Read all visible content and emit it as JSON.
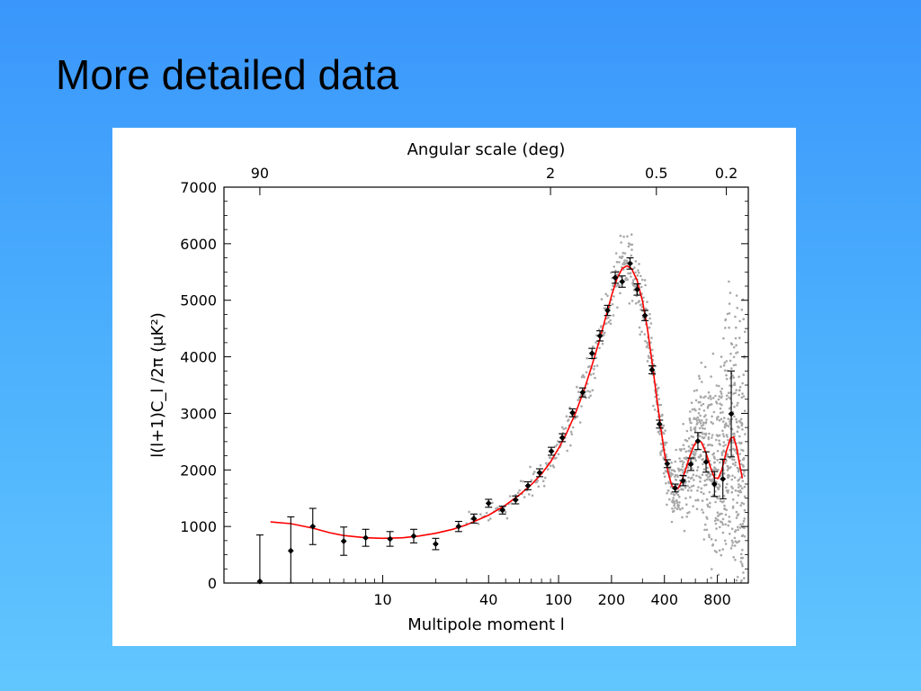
{
  "slide": {
    "title": "More detailed data"
  },
  "chart_data": {
    "type": "scatter",
    "title": "",
    "top_axis_label": "Angular scale (deg)",
    "top_ticks": [
      {
        "label": "90",
        "l": 2
      },
      {
        "label": "2",
        "l": 90
      },
      {
        "label": "0.5",
        "l": 360
      },
      {
        "label": "0.2",
        "l": 900
      }
    ],
    "xlabel": "Multipole moment l",
    "x_scale": "log",
    "xlim": [
      1.25,
      1200
    ],
    "xticks": [
      10,
      40,
      100,
      200,
      400,
      800
    ],
    "ylabel": "l(l+1)C_l /2π (μK²)",
    "ylim": [
      0,
      7000
    ],
    "yticks": [
      0,
      1000,
      2000,
      3000,
      4000,
      5000,
      6000,
      7000
    ],
    "grid": false,
    "colors": {
      "model": "#ff0000",
      "points": "#000000",
      "scatter": "#a8a8a8"
    },
    "binned_points": [
      {
        "l": 2,
        "y": 30,
        "err": 820
      },
      {
        "l": 3,
        "y": 570,
        "err": 600
      },
      {
        "l": 4,
        "y": 1000,
        "err": 320
      },
      {
        "l": 6,
        "y": 740,
        "err": 250
      },
      {
        "l": 8,
        "y": 800,
        "err": 150
      },
      {
        "l": 11,
        "y": 780,
        "err": 130
      },
      {
        "l": 15,
        "y": 830,
        "err": 120
      },
      {
        "l": 20,
        "y": 690,
        "err": 100
      },
      {
        "l": 27,
        "y": 1000,
        "err": 90
      },
      {
        "l": 33,
        "y": 1140,
        "err": 80
      },
      {
        "l": 40,
        "y": 1410,
        "err": 70
      },
      {
        "l": 48,
        "y": 1290,
        "err": 70
      },
      {
        "l": 57,
        "y": 1470,
        "err": 70
      },
      {
        "l": 67,
        "y": 1720,
        "err": 70
      },
      {
        "l": 78,
        "y": 1950,
        "err": 70
      },
      {
        "l": 91,
        "y": 2330,
        "err": 70
      },
      {
        "l": 105,
        "y": 2570,
        "err": 70
      },
      {
        "l": 120,
        "y": 3010,
        "err": 70
      },
      {
        "l": 137,
        "y": 3370,
        "err": 80
      },
      {
        "l": 155,
        "y": 4060,
        "err": 90
      },
      {
        "l": 172,
        "y": 4370,
        "err": 90
      },
      {
        "l": 190,
        "y": 4820,
        "err": 90
      },
      {
        "l": 210,
        "y": 5400,
        "err": 100
      },
      {
        "l": 230,
        "y": 5330,
        "err": 100
      },
      {
        "l": 255,
        "y": 5650,
        "err": 100
      },
      {
        "l": 280,
        "y": 5190,
        "err": 100
      },
      {
        "l": 310,
        "y": 4730,
        "err": 90
      },
      {
        "l": 340,
        "y": 3770,
        "err": 70
      },
      {
        "l": 375,
        "y": 2810,
        "err": 70
      },
      {
        "l": 415,
        "y": 2110,
        "err": 70
      },
      {
        "l": 460,
        "y": 1680,
        "err": 70
      },
      {
        "l": 510,
        "y": 1810,
        "err": 90
      },
      {
        "l": 565,
        "y": 2100,
        "err": 110
      },
      {
        "l": 620,
        "y": 2510,
        "err": 150
      },
      {
        "l": 690,
        "y": 2140,
        "err": 180
      },
      {
        "l": 770,
        "y": 1750,
        "err": 220
      },
      {
        "l": 860,
        "y": 1840,
        "err": 350
      },
      {
        "l": 960,
        "y": 2990,
        "err": 760
      }
    ],
    "model_curve": [
      [
        2.3,
        1080
      ],
      [
        3,
        1050
      ],
      [
        4,
        970
      ],
      [
        5,
        890
      ],
      [
        6,
        840
      ],
      [
        8,
        800
      ],
      [
        10,
        790
      ],
      [
        13,
        800
      ],
      [
        16,
        830
      ],
      [
        20,
        880
      ],
      [
        25,
        950
      ],
      [
        30,
        1030
      ],
      [
        40,
        1200
      ],
      [
        50,
        1380
      ],
      [
        60,
        1560
      ],
      [
        70,
        1740
      ],
      [
        80,
        1930
      ],
      [
        90,
        2140
      ],
      [
        100,
        2380
      ],
      [
        110,
        2620
      ],
      [
        125,
        3010
      ],
      [
        140,
        3420
      ],
      [
        155,
        3850
      ],
      [
        170,
        4270
      ],
      [
        185,
        4690
      ],
      [
        200,
        5080
      ],
      [
        215,
        5380
      ],
      [
        230,
        5560
      ],
      [
        245,
        5610
      ],
      [
        260,
        5560
      ],
      [
        280,
        5350
      ],
      [
        300,
        4990
      ],
      [
        320,
        4500
      ],
      [
        340,
        3920
      ],
      [
        360,
        3320
      ],
      [
        380,
        2780
      ],
      [
        400,
        2300
      ],
      [
        420,
        1950
      ],
      [
        440,
        1730
      ],
      [
        460,
        1650
      ],
      [
        480,
        1680
      ],
      [
        500,
        1790
      ],
      [
        530,
        2020
      ],
      [
        560,
        2260
      ],
      [
        590,
        2440
      ],
      [
        620,
        2530
      ],
      [
        650,
        2490
      ],
      [
        690,
        2300
      ],
      [
        730,
        2050
      ],
      [
        770,
        1860
      ],
      [
        810,
        1850
      ],
      [
        850,
        2010
      ],
      [
        900,
        2330
      ],
      [
        950,
        2560
      ],
      [
        990,
        2580
      ],
      [
        1030,
        2400
      ],
      [
        1070,
        2100
      ],
      [
        1110,
        1850
      ]
    ]
  }
}
